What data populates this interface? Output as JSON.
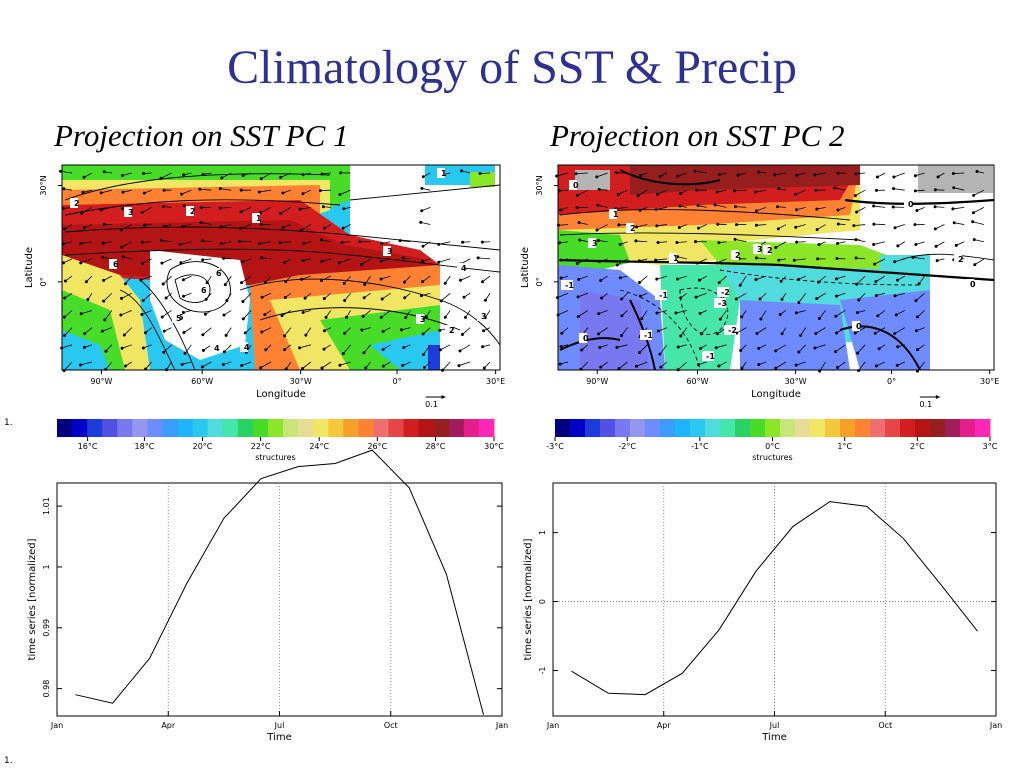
{
  "title": "Climatology of SST & Precip",
  "panels": [
    {
      "title": "Projection on SST PC 1",
      "map": {
        "ylabel": "Latitude",
        "xlabel": "Longitude",
        "lon_ticks": [
          "90°W",
          "60°W",
          "30°W",
          "0°",
          "30°E"
        ],
        "lat_ticks": [
          "30°N",
          "0°"
        ],
        "vector_key": "0.1",
        "contour_labels": [
          "2",
          "3",
          "2",
          "1",
          "6",
          "6",
          "3",
          "4",
          "5",
          "6",
          "5",
          "4",
          "4",
          "3",
          "2",
          "3",
          "1"
        ]
      },
      "colorbar": {
        "tick_labels": [
          "16°C",
          "18°C",
          "20°C",
          "22°C",
          "24°C",
          "26°C",
          "28°C",
          "30°C"
        ],
        "label": "structures"
      },
      "timeseries": {
        "ylabel": "time series [normalized]",
        "xlabel": "Time",
        "x_ticks": [
          "Jan",
          "Apr",
          "Jul",
          "Oct",
          "Jan"
        ],
        "y_ticks": [
          "0.98",
          "0.99",
          "1",
          "1.01"
        ]
      }
    },
    {
      "title": "Projection on SST PC 2",
      "map": {
        "ylabel": "Latitude",
        "xlabel": "Longitude",
        "lon_ticks": [
          "90°W",
          "60°W",
          "30°W",
          "0°",
          "30°E"
        ],
        "lat_ticks": [
          "30°N",
          "0°"
        ],
        "vector_key": "0.1",
        "contour_labels": [
          "0",
          "0",
          "1",
          "2",
          "3",
          "2",
          "3",
          "1",
          "2",
          "-1",
          "-1",
          "-2",
          "-3",
          "-2",
          "-1",
          "-1",
          "0",
          "0",
          "2",
          "0"
        ]
      },
      "colorbar": {
        "tick_labels": [
          "-3°C",
          "-2°C",
          "-1°C",
          "0°C",
          "1°C",
          "2°C",
          "3°C"
        ],
        "label": "structures"
      },
      "timeseries": {
        "ylabel": "time series [normalized]",
        "xlabel": "Time",
        "x_ticks": [
          "Jan",
          "Apr",
          "Jul",
          "Oct",
          "Jan"
        ],
        "y_ticks": [
          "-1",
          "0",
          "1"
        ]
      }
    }
  ],
  "marks": [
    "1.",
    "1."
  ],
  "colors": {
    "title": "#2e3192",
    "sst_palette": [
      "#000080",
      "#0000c8",
      "#1e3cdc",
      "#5050e6",
      "#7878f0",
      "#9696f0",
      "#6e8cff",
      "#3c9bff",
      "#1eb4ff",
      "#28c8f0",
      "#50dcdc",
      "#46e6aa",
      "#28d264",
      "#46dc28",
      "#8ce628",
      "#c8e678",
      "#e6dc96",
      "#f0e664",
      "#f5c83c",
      "#f5a028",
      "#ff8232",
      "#f06e6e",
      "#e64646",
      "#d21e1e",
      "#b41414",
      "#961e1e",
      "#a01e5a",
      "#e61e8c",
      "#ff28b4"
    ]
  },
  "chart_data": [
    {
      "type": "line",
      "x": [
        0.5,
        1.5,
        2.5,
        3.5,
        4.5,
        5.5,
        6.5,
        7.5,
        8.5,
        9.5,
        10.5,
        11.5
      ],
      "x_ticks": [
        "Jan",
        "Apr",
        "Jul",
        "Oct",
        "Jan"
      ],
      "x_tick_positions": [
        0,
        3,
        6,
        9,
        12
      ],
      "xlim": [
        0,
        12
      ],
      "ylim": [
        0.9755,
        1.0138
      ],
      "y_ticks": [
        0.98,
        0.99,
        1,
        1.01
      ],
      "series": [
        {
          "values": [
            0.979,
            0.9776,
            0.985,
            0.9973,
            1.008,
            1.0145,
            1.0165,
            1.017,
            1.0192,
            1.013,
            0.9988,
            0.9757
          ]
        }
      ],
      "xlabel": "Time",
      "ylabel": "time series [normalized]",
      "grid": "dotted vertical at Apr, Jul, Oct"
    },
    {
      "type": "line",
      "x": [
        0.5,
        1.5,
        2.5,
        3.5,
        4.5,
        5.5,
        6.5,
        7.5,
        8.5,
        9.5,
        10.5,
        11.5
      ],
      "x_ticks": [
        "Jan",
        "Apr",
        "Jul",
        "Oct",
        "Jan"
      ],
      "x_tick_positions": [
        0,
        3,
        6,
        9,
        12
      ],
      "xlim": [
        0,
        12
      ],
      "ylim": [
        -1.66,
        1.72
      ],
      "y_ticks": [
        -1,
        0,
        1
      ],
      "series": [
        {
          "values": [
            -1.01,
            -1.33,
            -1.35,
            -1.04,
            -0.41,
            0.44,
            1.09,
            1.45,
            1.38,
            0.91,
            0.25,
            -0.43
          ]
        }
      ],
      "xlabel": "Time",
      "ylabel": "time series [normalized]",
      "grid": "dotted vertical at Apr, Jul, Oct; dotted horizontal at 0"
    }
  ]
}
